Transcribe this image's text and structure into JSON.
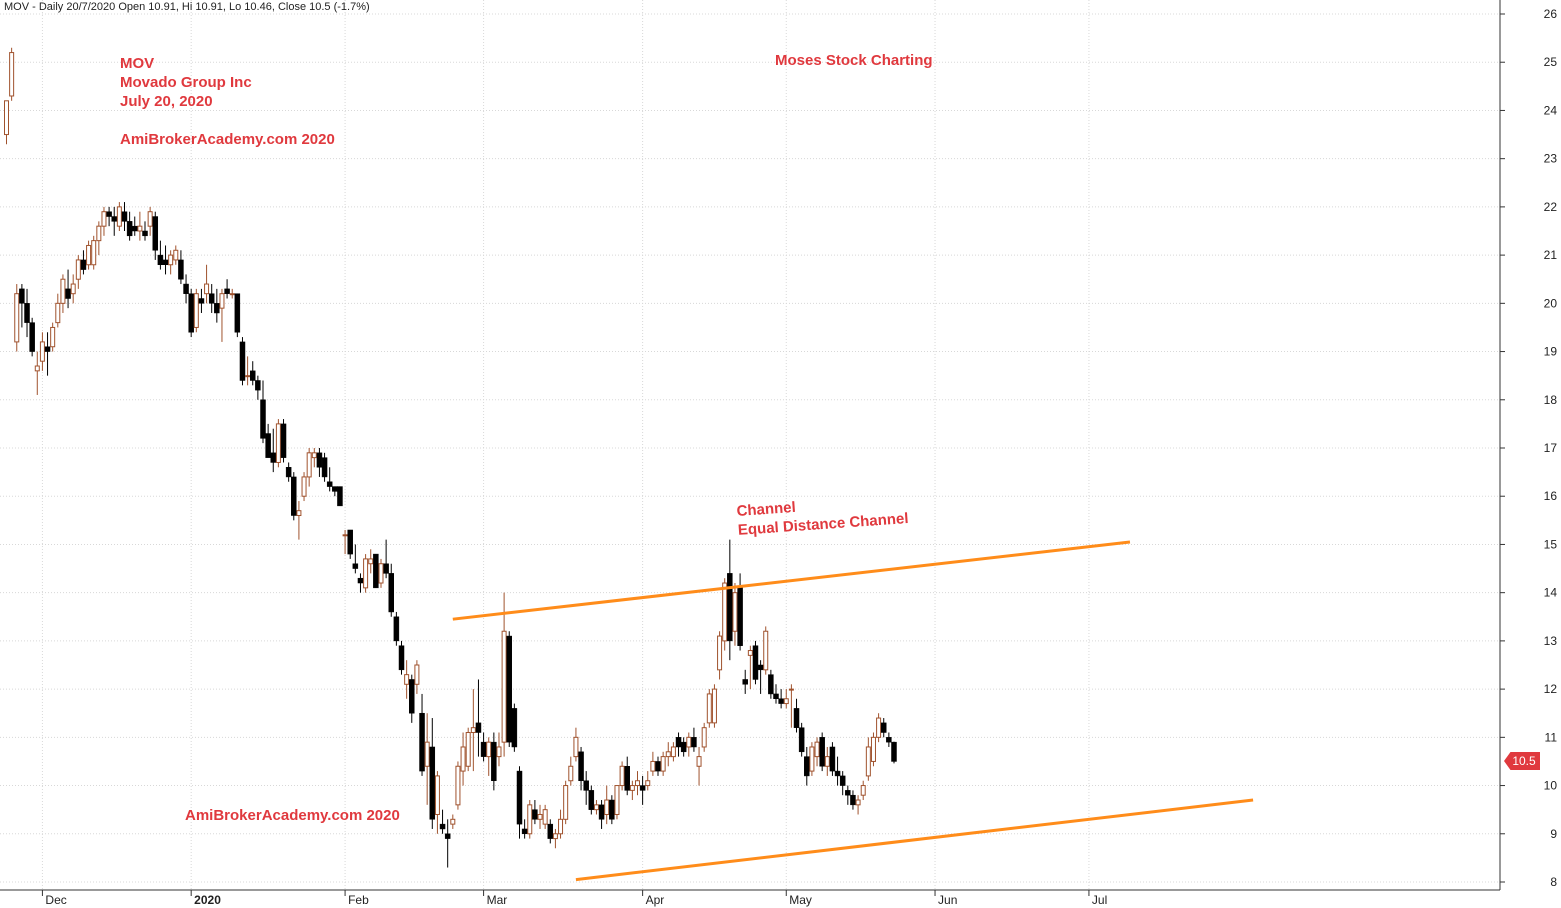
{
  "header": "MOV - Daily 20/7/2020 Open 10.91, Hi 10.91, Lo 10.46, Close 10.5 (-1.7%)",
  "annotations": {
    "ticker": "MOV",
    "company": "Movado Group Inc",
    "date": "July 20, 2020",
    "site_top": "AmiBrokerAcademy.com 2020",
    "site_bottom": "AmiBrokerAcademy.com 2020",
    "brand": "Moses Stock Charting",
    "channel_1": "Channel",
    "channel_2": "Equal Distance Channel"
  },
  "last_price_label": "10.5",
  "colors": {
    "up": "#a0522d",
    "down": "#000000",
    "channel": "#ff8c1a",
    "text": "#e0393e",
    "grid": "#d8d8d8"
  },
  "chart_data": {
    "type": "candlestick",
    "ylim": [
      8,
      26
    ],
    "y_ticks": [
      8,
      9,
      10,
      11,
      12,
      13,
      14,
      15,
      16,
      17,
      18,
      19,
      20,
      21,
      22,
      23,
      24,
      25,
      26
    ],
    "x_tick_labels": [
      {
        "label": "Dec",
        "bar": 7
      },
      {
        "label": "2020",
        "bar": 36
      },
      {
        "label": "Feb",
        "bar": 66
      },
      {
        "label": "Mar",
        "bar": 93
      },
      {
        "label": "Apr",
        "bar": 124
      },
      {
        "label": "May",
        "bar": 152
      },
      {
        "label": "Jun",
        "bar": 181
      },
      {
        "label": "Jul",
        "bar": 211
      }
    ],
    "channel": [
      {
        "from": {
          "bar": 87,
          "price": 13.45
        },
        "to": {
          "bar": 219,
          "price": 15.05
        }
      },
      {
        "from": {
          "bar": 111,
          "price": 8.05
        },
        "to": {
          "bar": 243,
          "price": 9.7
        }
      }
    ],
    "ohlc": [
      [
        23.5,
        24.2,
        23.3,
        24.2
      ],
      [
        24.3,
        25.3,
        24.2,
        25.2
      ],
      [
        19.2,
        20.4,
        19.0,
        20.2
      ],
      [
        20.3,
        20.4,
        19.5,
        20.0
      ],
      [
        20.0,
        20.3,
        19.3,
        19.6
      ],
      [
        19.6,
        19.7,
        18.9,
        19.0
      ],
      [
        18.6,
        19.0,
        18.1,
        18.7
      ],
      [
        18.8,
        19.4,
        18.6,
        19.2
      ],
      [
        19.1,
        19.4,
        18.5,
        19.0
      ],
      [
        19.1,
        19.6,
        19.0,
        19.5
      ],
      [
        19.6,
        20.2,
        19.5,
        20.0
      ],
      [
        20.0,
        20.6,
        19.8,
        20.5
      ],
      [
        20.3,
        20.7,
        19.9,
        20.1
      ],
      [
        20.2,
        20.6,
        20.0,
        20.4
      ],
      [
        20.5,
        21.0,
        20.3,
        20.9
      ],
      [
        20.9,
        21.1,
        20.6,
        20.7
      ],
      [
        20.8,
        21.3,
        20.7,
        21.2
      ],
      [
        20.8,
        21.4,
        20.7,
        21.3
      ],
      [
        21.3,
        21.7,
        21.0,
        21.6
      ],
      [
        21.6,
        22.0,
        21.4,
        21.9
      ],
      [
        21.9,
        22.0,
        21.6,
        21.8
      ],
      [
        21.8,
        22.0,
        21.4,
        21.7
      ],
      [
        21.6,
        22.1,
        21.5,
        22.0
      ],
      [
        21.9,
        22.1,
        21.5,
        21.7
      ],
      [
        21.7,
        21.9,
        21.3,
        21.4
      ],
      [
        21.6,
        21.8,
        21.4,
        21.5
      ],
      [
        21.5,
        21.9,
        21.3,
        21.6
      ],
      [
        21.5,
        21.7,
        21.3,
        21.4
      ],
      [
        21.6,
        22.0,
        21.4,
        21.9
      ],
      [
        21.8,
        21.9,
        20.9,
        21.1
      ],
      [
        21.0,
        21.3,
        20.7,
        20.8
      ],
      [
        20.9,
        21.2,
        20.6,
        20.8
      ],
      [
        20.8,
        21.1,
        20.6,
        21.0
      ],
      [
        20.9,
        21.2,
        20.8,
        21.1
      ],
      [
        20.9,
        21.1,
        20.4,
        20.5
      ],
      [
        20.4,
        20.6,
        20.0,
        20.2
      ],
      [
        20.2,
        20.3,
        19.3,
        19.4
      ],
      [
        19.5,
        20.3,
        19.4,
        20.2
      ],
      [
        20.1,
        20.3,
        19.8,
        20.0
      ],
      [
        20.2,
        20.8,
        20.0,
        20.4
      ],
      [
        20.2,
        20.4,
        19.8,
        20.0
      ],
      [
        20.0,
        20.3,
        19.6,
        19.8
      ],
      [
        19.9,
        20.3,
        19.2,
        20.2
      ],
      [
        20.3,
        20.5,
        20.1,
        20.2
      ],
      [
        20.2,
        20.3,
        20.1,
        20.2
      ],
      [
        20.2,
        20.2,
        19.3,
        19.4
      ],
      [
        19.2,
        19.3,
        18.3,
        18.4
      ],
      [
        18.5,
        18.9,
        18.3,
        18.5
      ],
      [
        18.6,
        18.8,
        18.3,
        18.4
      ],
      [
        18.4,
        18.5,
        18.0,
        18.2
      ],
      [
        18.0,
        18.4,
        17.1,
        17.2
      ],
      [
        17.3,
        17.5,
        16.8,
        16.8
      ],
      [
        16.9,
        17.4,
        16.5,
        16.7
      ],
      [
        16.7,
        17.6,
        16.6,
        17.5
      ],
      [
        17.5,
        17.6,
        16.7,
        16.8
      ],
      [
        16.6,
        16.7,
        16.3,
        16.4
      ],
      [
        16.4,
        16.5,
        15.5,
        15.6
      ],
      [
        15.6,
        15.9,
        15.1,
        15.7
      ],
      [
        16.0,
        16.5,
        15.9,
        16.4
      ],
      [
        16.4,
        17.0,
        16.2,
        16.9
      ],
      [
        16.8,
        17.0,
        16.6,
        16.9
      ],
      [
        16.9,
        17.0,
        16.4,
        16.6
      ],
      [
        16.8,
        16.9,
        16.3,
        16.4
      ],
      [
        16.3,
        16.6,
        16.1,
        16.2
      ],
      [
        16.2,
        16.2,
        16.0,
        16.1
      ],
      [
        16.2,
        16.2,
        15.8,
        15.8
      ],
      [
        15.2,
        15.3,
        14.8,
        15.2
      ],
      [
        15.3,
        15.3,
        14.7,
        14.8
      ],
      [
        14.6,
        15.0,
        14.4,
        14.5
      ],
      [
        14.3,
        14.4,
        14.0,
        14.2
      ],
      [
        14.1,
        14.8,
        14.0,
        14.7
      ],
      [
        14.6,
        14.9,
        14.4,
        14.7
      ],
      [
        14.8,
        14.8,
        14.1,
        14.1
      ],
      [
        14.2,
        14.7,
        14.1,
        14.6
      ],
      [
        14.6,
        15.1,
        14.3,
        14.4
      ],
      [
        14.4,
        14.6,
        13.5,
        13.6
      ],
      [
        13.5,
        13.6,
        12.9,
        13.0
      ],
      [
        12.9,
        13.0,
        12.3,
        12.4
      ],
      [
        12.1,
        12.6,
        11.8,
        12.3
      ],
      [
        12.2,
        12.3,
        11.3,
        11.5
      ],
      [
        12.1,
        12.6,
        11.9,
        12.5
      ],
      [
        11.5,
        11.9,
        10.2,
        10.3
      ],
      [
        10.4,
        11.5,
        9.6,
        10.9
      ],
      [
        10.8,
        11.4,
        9.1,
        9.3
      ],
      [
        9.4,
        10.3,
        9.0,
        10.2
      ],
      [
        9.2,
        9.5,
        9.0,
        9.1
      ],
      [
        9.0,
        9.3,
        8.3,
        8.9
      ],
      [
        9.2,
        9.4,
        9.1,
        9.3
      ],
      [
        9.6,
        10.5,
        9.5,
        10.4
      ],
      [
        10.3,
        11.1,
        10.0,
        10.8
      ],
      [
        10.4,
        11.2,
        10.3,
        11.1
      ],
      [
        11.1,
        12.0,
        10.3,
        11.2
      ],
      [
        11.3,
        12.2,
        10.6,
        11.1
      ],
      [
        10.9,
        11.1,
        10.5,
        10.6
      ],
      [
        10.6,
        11.0,
        10.2,
        10.9
      ],
      [
        10.9,
        11.1,
        9.9,
        10.1
      ],
      [
        10.6,
        11.1,
        10.4,
        10.8
      ],
      [
        10.9,
        14.0,
        10.6,
        13.2
      ],
      [
        13.1,
        13.2,
        10.8,
        10.9
      ],
      [
        11.6,
        11.7,
        10.7,
        10.8
      ],
      [
        10.3,
        10.4,
        8.9,
        9.2
      ],
      [
        9.1,
        9.3,
        8.9,
        9.0
      ],
      [
        9.0,
        9.7,
        8.9,
        9.6
      ],
      [
        9.5,
        9.7,
        9.2,
        9.3
      ],
      [
        9.3,
        9.6,
        9.1,
        9.4
      ],
      [
        9.2,
        9.6,
        9.1,
        9.5
      ],
      [
        9.2,
        9.3,
        8.8,
        8.9
      ],
      [
        8.9,
        9.1,
        8.7,
        9.0
      ],
      [
        9.0,
        9.5,
        8.9,
        9.3
      ],
      [
        9.3,
        10.1,
        9.2,
        10.0
      ],
      [
        10.1,
        10.6,
        10.0,
        10.4
      ],
      [
        10.6,
        11.2,
        10.5,
        11.0
      ],
      [
        10.7,
        10.8,
        9.9,
        10.1
      ],
      [
        10.1,
        10.3,
        9.6,
        9.9
      ],
      [
        9.9,
        10.0,
        9.4,
        9.5
      ],
      [
        9.5,
        9.7,
        9.4,
        9.6
      ],
      [
        9.6,
        9.7,
        9.1,
        9.3
      ],
      [
        9.4,
        10.0,
        9.2,
        9.7
      ],
      [
        9.7,
        9.8,
        9.2,
        9.3
      ],
      [
        9.4,
        10.0,
        9.3,
        10.0
      ],
      [
        10.0,
        10.5,
        9.9,
        10.4
      ],
      [
        10.4,
        10.6,
        9.8,
        9.9
      ],
      [
        9.9,
        10.1,
        9.7,
        10.0
      ],
      [
        10.0,
        10.3,
        9.8,
        10.1
      ],
      [
        10.0,
        10.2,
        9.6,
        9.9
      ],
      [
        10.0,
        10.3,
        9.9,
        10.1
      ],
      [
        10.3,
        10.7,
        10.2,
        10.5
      ],
      [
        10.5,
        10.6,
        10.2,
        10.3
      ],
      [
        10.3,
        10.7,
        10.2,
        10.6
      ],
      [
        10.6,
        10.9,
        10.4,
        10.7
      ],
      [
        10.6,
        10.9,
        10.5,
        10.8
      ],
      [
        11.0,
        11.1,
        10.6,
        10.8
      ],
      [
        10.9,
        11.0,
        10.6,
        10.7
      ],
      [
        10.8,
        11.1,
        10.6,
        11.0
      ],
      [
        11.0,
        11.2,
        10.7,
        10.8
      ],
      [
        10.4,
        10.8,
        10.0,
        10.6
      ],
      [
        10.8,
        11.3,
        10.7,
        11.2
      ],
      [
        11.3,
        12.0,
        11.2,
        11.9
      ],
      [
        11.3,
        12.1,
        11.2,
        12.0
      ],
      [
        12.4,
        13.2,
        12.2,
        13.1
      ],
      [
        13.0,
        14.3,
        12.8,
        14.2
      ],
      [
        14.4,
        15.1,
        12.6,
        13.0
      ],
      [
        13.2,
        14.2,
        12.9,
        14.0
      ],
      [
        14.1,
        14.4,
        12.8,
        12.9
      ],
      [
        12.2,
        12.4,
        11.9,
        12.1
      ],
      [
        12.7,
        12.9,
        12.0,
        12.8
      ],
      [
        12.9,
        13.0,
        12.1,
        12.2
      ],
      [
        12.5,
        12.6,
        11.9,
        12.4
      ],
      [
        12.4,
        13.3,
        12.3,
        13.2
      ],
      [
        12.3,
        12.4,
        11.8,
        11.9
      ],
      [
        11.9,
        12.1,
        11.7,
        11.8
      ],
      [
        11.8,
        12.0,
        11.6,
        11.7
      ],
      [
        11.7,
        12.0,
        11.6,
        11.8
      ],
      [
        12.0,
        12.1,
        11.2,
        12.0
      ],
      [
        11.6,
        11.8,
        11.1,
        11.2
      ],
      [
        11.2,
        11.3,
        10.6,
        10.7
      ],
      [
        10.6,
        10.8,
        10.0,
        10.2
      ],
      [
        10.3,
        10.9,
        10.2,
        10.8
      ],
      [
        10.6,
        11.0,
        10.4,
        10.9
      ],
      [
        11.0,
        11.1,
        10.3,
        10.4
      ],
      [
        10.4,
        10.8,
        10.2,
        10.6
      ],
      [
        10.8,
        10.9,
        10.2,
        10.3
      ],
      [
        10.3,
        10.6,
        10.0,
        10.2
      ],
      [
        10.2,
        10.3,
        9.8,
        10.0
      ],
      [
        9.9,
        10.0,
        9.6,
        9.8
      ],
      [
        9.8,
        9.9,
        9.5,
        9.6
      ],
      [
        9.6,
        9.8,
        9.4,
        9.7
      ],
      [
        9.8,
        10.1,
        9.7,
        10.0
      ],
      [
        10.2,
        11.0,
        10.1,
        10.8
      ],
      [
        10.5,
        11.1,
        10.4,
        11.0
      ],
      [
        11.0,
        11.5,
        10.9,
        11.4
      ],
      [
        11.3,
        11.4,
        11.0,
        11.1
      ],
      [
        11.0,
        11.1,
        10.8,
        10.9
      ],
      [
        10.9,
        10.91,
        10.46,
        10.5
      ]
    ]
  }
}
